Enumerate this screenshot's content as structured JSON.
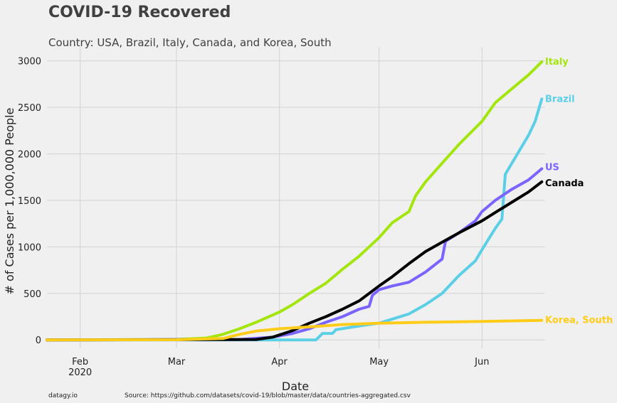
{
  "chart_data": {
    "type": "line",
    "title": "COVID-19 Recovered",
    "subtitle": "Country: USA, Brazil, Italy, Canada, and Korea, South",
    "xlabel": "Date",
    "ylabel": "# of Cases per 1,000,000 People",
    "xlim": [
      "2020-01-22",
      "2020-06-20"
    ],
    "ylim": [
      -90,
      3150
    ],
    "y_ticks": [
      0,
      500,
      1000,
      1500,
      2000,
      2500,
      3000
    ],
    "x_ticks": [
      {
        "date": "2020-02-01",
        "label": "Feb",
        "sublabel": "2020"
      },
      {
        "date": "2020-03-01",
        "label": "Mar",
        "sublabel": ""
      },
      {
        "date": "2020-04-01",
        "label": "Apr",
        "sublabel": ""
      },
      {
        "date": "2020-05-01",
        "label": "May",
        "sublabel": ""
      },
      {
        "date": "2020-06-01",
        "label": "Jun",
        "sublabel": ""
      }
    ],
    "grid": true,
    "legend": "labels at line ends",
    "series": [
      {
        "name": "Italy",
        "color": "#a3e60d",
        "points": [
          [
            "2020-01-22",
            0
          ],
          [
            "2020-03-01",
            5
          ],
          [
            "2020-03-10",
            20
          ],
          [
            "2020-03-15",
            60
          ],
          [
            "2020-03-20",
            120
          ],
          [
            "2020-03-25",
            190
          ],
          [
            "2020-04-01",
            300
          ],
          [
            "2020-04-05",
            380
          ],
          [
            "2020-04-10",
            500
          ],
          [
            "2020-04-15",
            610
          ],
          [
            "2020-04-20",
            760
          ],
          [
            "2020-04-25",
            900
          ],
          [
            "2020-05-01",
            1100
          ],
          [
            "2020-05-05",
            1260
          ],
          [
            "2020-05-10",
            1380
          ],
          [
            "2020-05-12",
            1550
          ],
          [
            "2020-05-15",
            1700
          ],
          [
            "2020-05-20",
            1900
          ],
          [
            "2020-05-25",
            2100
          ],
          [
            "2020-06-01",
            2350
          ],
          [
            "2020-06-05",
            2550
          ],
          [
            "2020-06-10",
            2700
          ],
          [
            "2020-06-15",
            2850
          ],
          [
            "2020-06-19",
            2990
          ]
        ]
      },
      {
        "name": "Brazil",
        "color": "#5bcfe6",
        "points": [
          [
            "2020-01-22",
            0
          ],
          [
            "2020-04-12",
            0
          ],
          [
            "2020-04-14",
            70
          ],
          [
            "2020-04-17",
            70
          ],
          [
            "2020-04-18",
            110
          ],
          [
            "2020-04-25",
            150
          ],
          [
            "2020-05-01",
            180
          ],
          [
            "2020-05-10",
            280
          ],
          [
            "2020-05-15",
            380
          ],
          [
            "2020-05-20",
            500
          ],
          [
            "2020-05-25",
            690
          ],
          [
            "2020-05-30",
            850
          ],
          [
            "2020-06-01",
            970
          ],
          [
            "2020-06-05",
            1200
          ],
          [
            "2020-06-07",
            1300
          ],
          [
            "2020-06-08",
            1780
          ],
          [
            "2020-06-10",
            1900
          ],
          [
            "2020-06-15",
            2200
          ],
          [
            "2020-06-17",
            2350
          ],
          [
            "2020-06-19",
            2590
          ]
        ]
      },
      {
        "name": "US",
        "color": "#7a64ff",
        "points": [
          [
            "2020-01-22",
            0
          ],
          [
            "2020-03-20",
            5
          ],
          [
            "2020-03-30",
            30
          ],
          [
            "2020-04-05",
            70
          ],
          [
            "2020-04-10",
            120
          ],
          [
            "2020-04-15",
            190
          ],
          [
            "2020-04-20",
            250
          ],
          [
            "2020-04-25",
            330
          ],
          [
            "2020-04-28",
            360
          ],
          [
            "2020-04-29",
            480
          ],
          [
            "2020-05-01",
            540
          ],
          [
            "2020-05-05",
            580
          ],
          [
            "2020-05-10",
            620
          ],
          [
            "2020-05-15",
            730
          ],
          [
            "2020-05-20",
            870
          ],
          [
            "2020-05-21",
            1060
          ],
          [
            "2020-05-25",
            1150
          ],
          [
            "2020-05-30",
            1280
          ],
          [
            "2020-06-01",
            1380
          ],
          [
            "2020-06-05",
            1500
          ],
          [
            "2020-06-10",
            1620
          ],
          [
            "2020-06-15",
            1720
          ],
          [
            "2020-06-19",
            1840
          ]
        ]
      },
      {
        "name": "Canada",
        "color": "#000000",
        "points": [
          [
            "2020-01-22",
            0
          ],
          [
            "2020-03-25",
            5
          ],
          [
            "2020-03-30",
            30
          ],
          [
            "2020-04-05",
            100
          ],
          [
            "2020-04-10",
            180
          ],
          [
            "2020-04-15",
            250
          ],
          [
            "2020-04-20",
            330
          ],
          [
            "2020-04-25",
            420
          ],
          [
            "2020-05-01",
            580
          ],
          [
            "2020-05-05",
            680
          ],
          [
            "2020-05-10",
            820
          ],
          [
            "2020-05-15",
            950
          ],
          [
            "2020-05-20",
            1050
          ],
          [
            "2020-05-25",
            1150
          ],
          [
            "2020-06-01",
            1280
          ],
          [
            "2020-06-05",
            1370
          ],
          [
            "2020-06-10",
            1480
          ],
          [
            "2020-06-15",
            1590
          ],
          [
            "2020-06-19",
            1700
          ]
        ]
      },
      {
        "name": "Korea, South",
        "color": "#ffcc1a",
        "points": [
          [
            "2020-01-22",
            0
          ],
          [
            "2020-03-01",
            2
          ],
          [
            "2020-03-15",
            15
          ],
          [
            "2020-03-20",
            60
          ],
          [
            "2020-03-25",
            95
          ],
          [
            "2020-04-01",
            120
          ],
          [
            "2020-04-10",
            140
          ],
          [
            "2020-04-20",
            165
          ],
          [
            "2020-05-01",
            180
          ],
          [
            "2020-05-15",
            190
          ],
          [
            "2020-06-01",
            198
          ],
          [
            "2020-06-19",
            210
          ]
        ]
      }
    ]
  },
  "footer": {
    "left": "datagy.io",
    "right": "Source: https://github.com/datasets/covid-19/blob/master/data/countries-aggregated.csv"
  }
}
